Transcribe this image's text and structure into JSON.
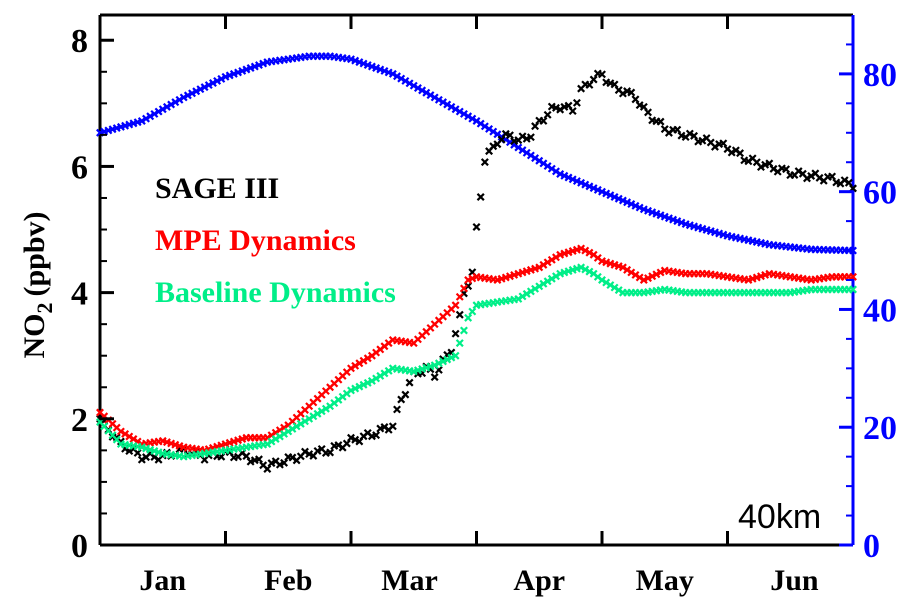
{
  "chart_data": {
    "type": "scatter",
    "title": "",
    "ylabel": "NO",
    "ylabel_sub": "2",
    "ylabel_unit": "(ppbv)",
    "xlim": [
      0,
      180
    ],
    "ylim": [
      0,
      8.4
    ],
    "y2lim": [
      0,
      90
    ],
    "yticks": [
      "0",
      "2",
      "4",
      "6",
      "8"
    ],
    "y2ticks": [
      "0",
      "20",
      "40",
      "60",
      "80"
    ],
    "month_labels": [
      "Jan",
      "Feb",
      "Mar",
      "Apr",
      "May",
      "Jun"
    ],
    "month_centers": [
      15,
      45,
      74,
      105,
      135,
      166
    ],
    "month_boundaries": [
      30,
      60,
      90,
      120,
      150
    ],
    "annotation": "40km",
    "colors": {
      "sage": "#000000",
      "mpe": "#ff0000",
      "baseline": "#00ee88",
      "right_axis": "#0000ff"
    },
    "series": [
      {
        "name": "SAGE III",
        "color": "#000000",
        "axis": "left",
        "x": [
          0,
          5,
          10,
          15,
          20,
          25,
          30,
          35,
          40,
          45,
          50,
          55,
          60,
          65,
          70,
          72,
          75,
          78,
          80,
          84,
          86,
          87,
          89,
          90,
          92,
          95,
          98,
          100,
          103,
          105,
          108,
          110,
          113,
          115,
          118,
          120,
          123,
          125,
          128,
          130,
          135,
          140,
          145,
          150,
          155,
          160,
          165,
          170,
          175,
          180
        ],
        "y": [
          2.0,
          1.6,
          1.4,
          1.4,
          1.5,
          1.4,
          1.45,
          1.4,
          1.25,
          1.35,
          1.45,
          1.5,
          1.65,
          1.75,
          1.9,
          2.3,
          2.7,
          2.8,
          2.7,
          3.1,
          3.6,
          4.0,
          4.3,
          5.0,
          6.1,
          6.4,
          6.5,
          6.4,
          6.5,
          6.7,
          6.9,
          6.95,
          6.9,
          7.2,
          7.4,
          7.45,
          7.25,
          7.2,
          7.1,
          6.9,
          6.6,
          6.5,
          6.4,
          6.3,
          6.1,
          6.0,
          5.9,
          5.85,
          5.8,
          5.7
        ]
      },
      {
        "name": "MPE Dynamics",
        "color": "#ff0000",
        "axis": "left",
        "x": [
          0,
          5,
          10,
          15,
          20,
          25,
          30,
          35,
          40,
          45,
          50,
          55,
          60,
          65,
          70,
          75,
          80,
          85,
          88,
          90,
          95,
          100,
          105,
          110,
          115,
          118,
          120,
          125,
          130,
          135,
          140,
          145,
          150,
          155,
          160,
          165,
          170,
          175,
          180
        ],
        "y": [
          2.1,
          1.8,
          1.6,
          1.65,
          1.55,
          1.5,
          1.6,
          1.7,
          1.7,
          1.9,
          2.2,
          2.5,
          2.8,
          3.0,
          3.25,
          3.2,
          3.5,
          3.8,
          4.2,
          4.25,
          4.2,
          4.3,
          4.4,
          4.6,
          4.7,
          4.6,
          4.5,
          4.4,
          4.2,
          4.35,
          4.3,
          4.3,
          4.25,
          4.2,
          4.3,
          4.25,
          4.2,
          4.25,
          4.25
        ]
      },
      {
        "name": "Baseline Dynamics",
        "color": "#00ee88",
        "axis": "left",
        "x": [
          0,
          5,
          10,
          15,
          20,
          25,
          30,
          35,
          40,
          45,
          50,
          55,
          60,
          65,
          70,
          75,
          80,
          85,
          88,
          90,
          95,
          100,
          105,
          110,
          115,
          118,
          120,
          125,
          130,
          135,
          140,
          145,
          150,
          155,
          160,
          165,
          170,
          175,
          180
        ],
        "y": [
          1.95,
          1.6,
          1.55,
          1.45,
          1.4,
          1.45,
          1.5,
          1.55,
          1.6,
          1.8,
          2.0,
          2.2,
          2.45,
          2.6,
          2.8,
          2.75,
          2.85,
          3.0,
          3.6,
          3.8,
          3.85,
          3.9,
          4.1,
          4.3,
          4.4,
          4.3,
          4.2,
          4.0,
          4.0,
          4.05,
          4.0,
          4.0,
          4.0,
          4.0,
          4.0,
          4.0,
          4.05,
          4.05,
          4.05
        ]
      },
      {
        "name": "",
        "color": "#0000ff",
        "axis": "right",
        "x": [
          0,
          10,
          20,
          30,
          40,
          50,
          55,
          60,
          70,
          80,
          90,
          100,
          110,
          120,
          130,
          140,
          150,
          160,
          170,
          180
        ],
        "y": [
          70,
          72,
          76,
          79.5,
          82,
          83,
          83,
          82.5,
          80,
          76,
          72,
          67.5,
          63,
          60,
          57,
          54.5,
          52.5,
          51,
          50.2,
          50
        ]
      }
    ]
  }
}
